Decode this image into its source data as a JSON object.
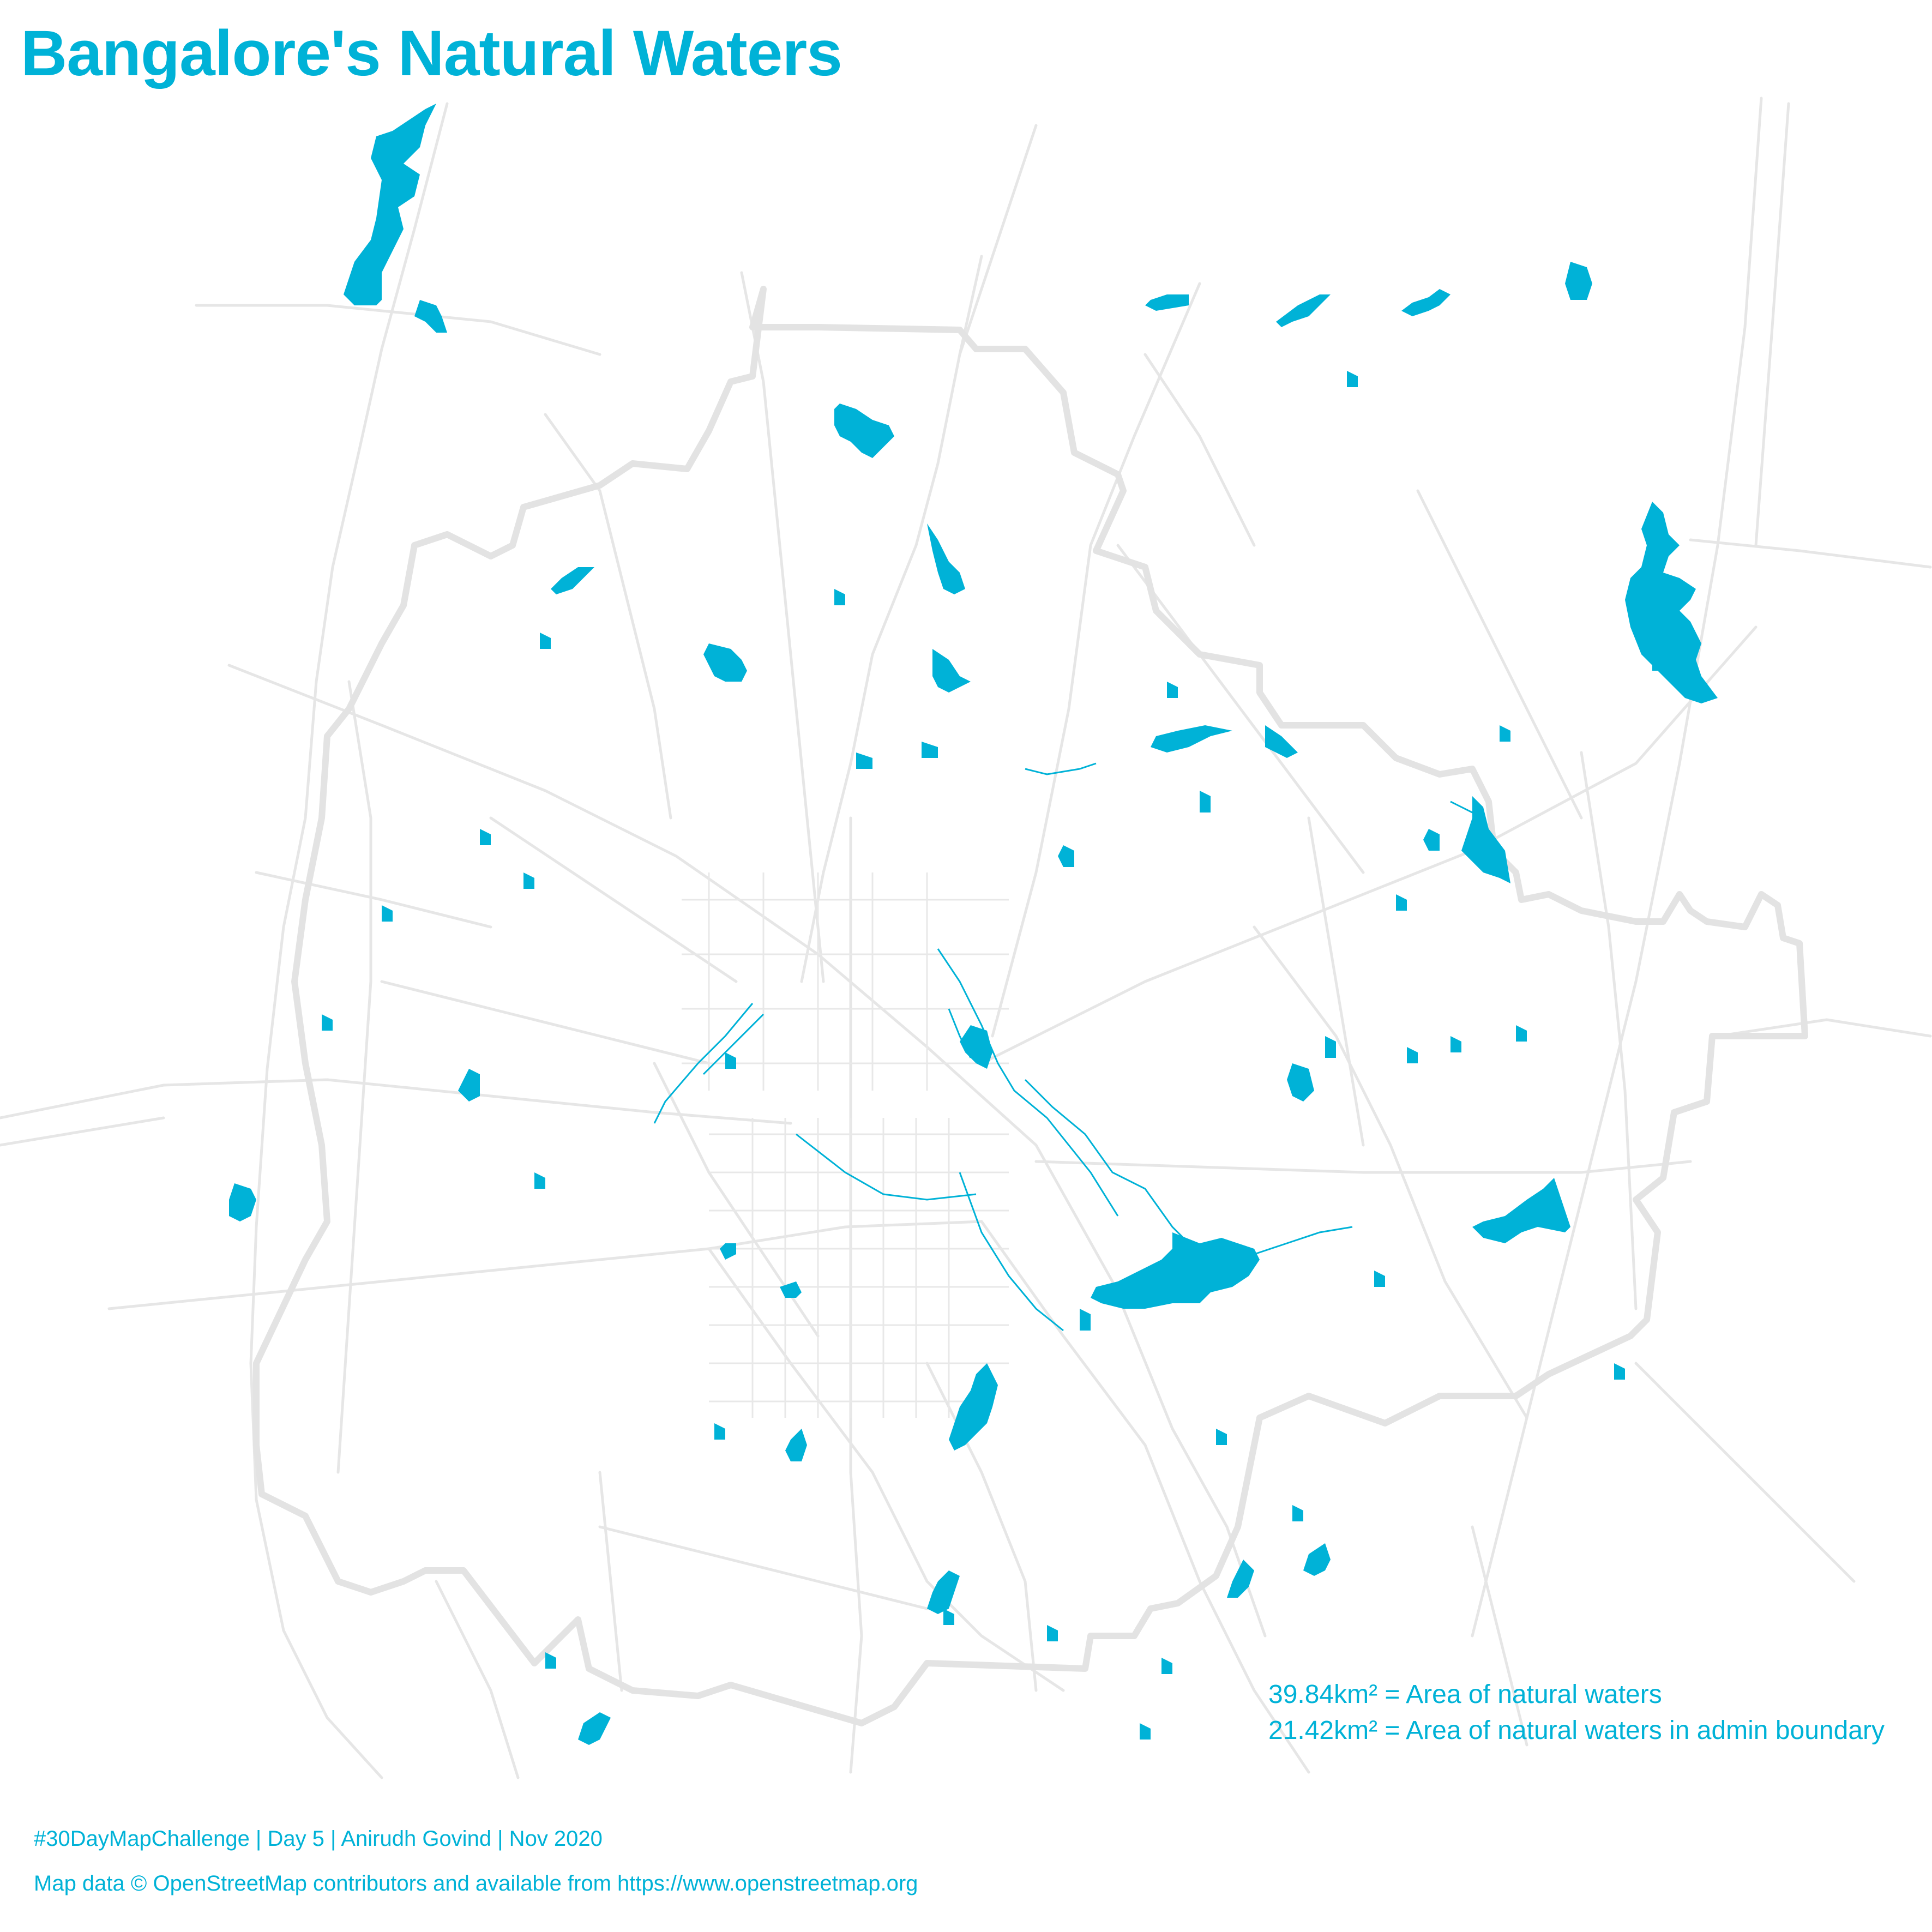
{
  "title": "Bangalore's Natural Waters",
  "stats": {
    "total_area": "39.84km² = Area of natural waters",
    "admin_area": "21.42km² = Area of natural waters in admin boundary"
  },
  "credits": {
    "line1": "#30DayMapChallenge | Day 5 | Anirudh Govind | Nov 2020",
    "line2": "Map data © OpenStreetMap contributors and available from https://www.openstreetmap.org"
  },
  "colors": {
    "water": "#00b2d7",
    "roads": "#e6e6e6",
    "admin_boundary": "#e3e3e3",
    "background": "#ffffff",
    "text": "#00b2d7"
  }
}
